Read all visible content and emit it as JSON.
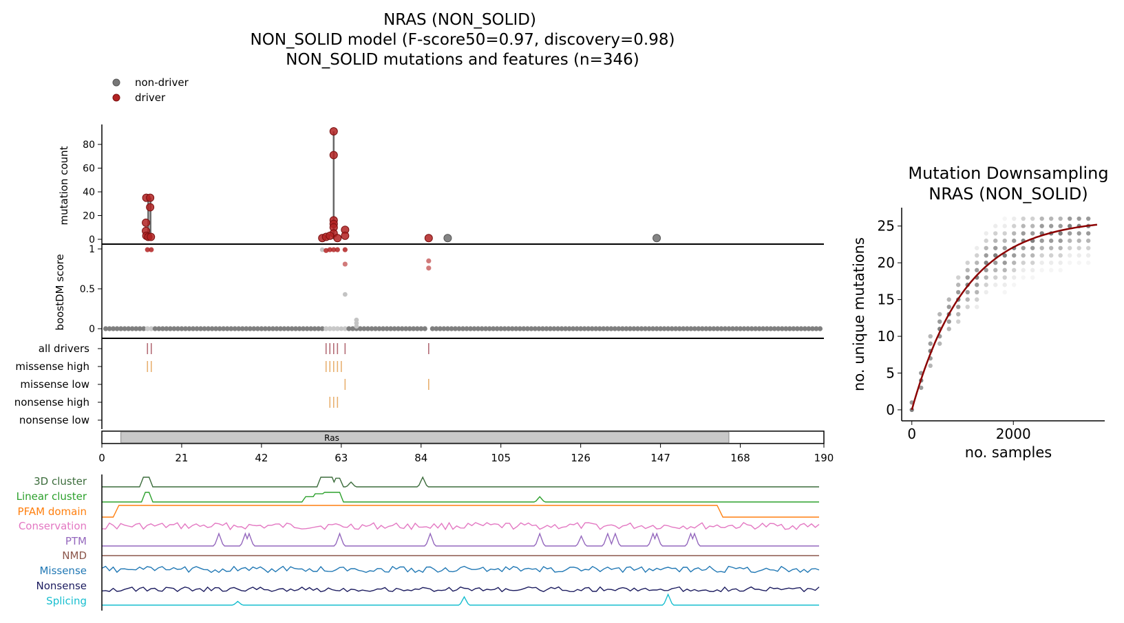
{
  "header": {
    "title_line1": "NRAS (NON_SOLID)",
    "title_line2": "NON_SOLID model (F-score50=0.97, discovery=0.98)",
    "title_line3": "NON_SOLID mutations and features (n=346)"
  },
  "legend": {
    "placement": "top-left",
    "items": [
      {
        "label": "non-driver",
        "color": "#777777"
      },
      {
        "label": "driver",
        "color": "#b22222"
      }
    ]
  },
  "colors": {
    "driver": "#b22222",
    "non_driver": "#777777",
    "driver_tick": "#b36b75",
    "missense_tick": "#e8b070",
    "fit_line": "#8b0000",
    "domain_fill": "#c8c8c8"
  },
  "chart_data": [
    {
      "type": "scatter",
      "panel": "mutation-count",
      "ylabel": "mutation count",
      "ylim": [
        0,
        95
      ],
      "yticks": [
        "0",
        "20",
        "40",
        "60",
        "80"
      ],
      "stems": [
        {
          "x": 12.2,
          "y": 35
        },
        {
          "x": 12.8,
          "y": 35
        },
        {
          "x": 61,
          "y": 91
        }
      ],
      "driver_points": [
        {
          "x": 11.7,
          "y": 35
        },
        {
          "x": 12.7,
          "y": 35
        },
        {
          "x": 12.7,
          "y": 27
        },
        {
          "x": 11.6,
          "y": 14
        },
        {
          "x": 11.6,
          "y": 7
        },
        {
          "x": 11.7,
          "y": 3
        },
        {
          "x": 12.2,
          "y": 2
        },
        {
          "x": 12.9,
          "y": 2
        },
        {
          "x": 61,
          "y": 91
        },
        {
          "x": 61,
          "y": 71
        },
        {
          "x": 61,
          "y": 16
        },
        {
          "x": 61,
          "y": 13
        },
        {
          "x": 61,
          "y": 10
        },
        {
          "x": 61,
          "y": 5
        },
        {
          "x": 64,
          "y": 8
        },
        {
          "x": 64,
          "y": 3
        },
        {
          "x": 58,
          "y": 1
        },
        {
          "x": 59,
          "y": 2
        },
        {
          "x": 60,
          "y": 3
        },
        {
          "x": 62,
          "y": 1
        },
        {
          "x": 86,
          "y": 1
        }
      ],
      "nondriver_points": [
        {
          "x": 91,
          "y": 1
        },
        {
          "x": 146,
          "y": 1
        }
      ]
    },
    {
      "type": "scatter",
      "panel": "boostdm-score",
      "ylabel": "boostDM score",
      "ylim": [
        0,
        1
      ],
      "yticks": [
        "0",
        "0.5",
        "1"
      ],
      "baseline_range": [
        1,
        189
      ],
      "driver_points": [
        {
          "x": 12,
          "y": 0.99
        },
        {
          "x": 13,
          "y": 0.99
        },
        {
          "x": 59,
          "y": 0.98
        },
        {
          "x": 60,
          "y": 0.99
        },
        {
          "x": 61,
          "y": 0.99
        },
        {
          "x": 62,
          "y": 0.99
        },
        {
          "x": 64,
          "y": 0.99
        },
        {
          "x": 64,
          "y": 0.81
        },
        {
          "x": 86,
          "y": 0.85
        },
        {
          "x": 86,
          "y": 0.76
        }
      ],
      "light_points": [
        {
          "x": 58,
          "y": 0.99
        },
        {
          "x": 64,
          "y": 0.43
        },
        {
          "x": 67,
          "y": 0.11
        },
        {
          "x": 67,
          "y": 0.07
        },
        {
          "x": 67,
          "y": 0.03
        },
        {
          "x": 63,
          "y": 0.0
        }
      ]
    },
    {
      "type": "table",
      "panel": "consequence-ticks",
      "rows": [
        {
          "label": "all drivers",
          "positions": [
            12,
            13,
            59,
            60,
            61,
            62,
            64,
            86
          ]
        },
        {
          "label": "missense high",
          "positions": [
            12,
            13,
            59,
            60,
            61,
            62,
            63
          ]
        },
        {
          "label": "missense low",
          "positions": [
            64,
            86
          ]
        },
        {
          "label": "nonsense high",
          "positions": [
            60,
            61,
            62
          ]
        },
        {
          "label": "nonsense low",
          "positions": []
        }
      ]
    },
    {
      "type": "bar",
      "panel": "protein-domain",
      "domains": [
        {
          "label": "Ras",
          "start": 5,
          "end": 165
        }
      ],
      "xlim": [
        0,
        190
      ],
      "xticks": [
        "0",
        "21",
        "42",
        "63",
        "84",
        "105",
        "126",
        "147",
        "168",
        "190"
      ]
    },
    {
      "type": "line",
      "panel": "features",
      "tracks": [
        {
          "label": "3D cluster",
          "color": "#3a6b3a"
        },
        {
          "label": "Linear cluster",
          "color": "#2ca02c"
        },
        {
          "label": "PFAM domain",
          "color": "#ff7f0e"
        },
        {
          "label": "Conservation",
          "color": "#e377c2"
        },
        {
          "label": "PTM",
          "color": "#9467bd"
        },
        {
          "label": "NMD",
          "color": "#8c564b"
        },
        {
          "label": "Missense",
          "color": "#1f77b4"
        },
        {
          "label": "Nonsense",
          "color": "#1a1a5e"
        },
        {
          "label": "Splicing",
          "color": "#17becf"
        }
      ]
    },
    {
      "type": "scatter",
      "panel": "downsampling",
      "title_line1": "Mutation Downsampling",
      "title_line2": "NRAS (NON_SOLID)",
      "xlabel": "no. samples",
      "ylabel": "no. unique mutations",
      "xlim": [
        -200,
        3800
      ],
      "ylim": [
        -1.5,
        27.5
      ],
      "xticks": [
        "0",
        "2000"
      ],
      "yticks": [
        "0",
        "5",
        "10",
        "15",
        "20",
        "25"
      ],
      "fit_curve": {
        "plateau": 26,
        "rate": 0.00095
      },
      "max_samples": 3650
    }
  ]
}
